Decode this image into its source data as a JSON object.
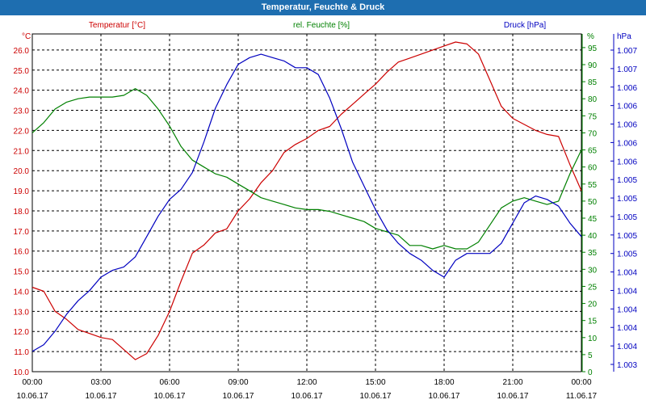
{
  "window": {
    "title": "Temperatur, Feuchte & Druck"
  },
  "colors": {
    "temperature": "#cc0000",
    "humidity": "#008000",
    "pressure": "#0000c0",
    "title_bar": "#1e6eb0",
    "grid": "#000000"
  },
  "chart_data": {
    "type": "line",
    "title": "Temperatur, Feuchte & Druck",
    "grid": true,
    "x_labels": [
      {
        "time": "00:00",
        "date": "10.06.17"
      },
      {
        "time": "03:00",
        "date": "10.06.17"
      },
      {
        "time": "06:00",
        "date": "10.06.17"
      },
      {
        "time": "09:00",
        "date": "10.06.17"
      },
      {
        "time": "12:00",
        "date": "10.06.17"
      },
      {
        "time": "15:00",
        "date": "10.06.17"
      },
      {
        "time": "18:00",
        "date": "10.06.17"
      },
      {
        "time": "21:00",
        "date": "10.06.17"
      },
      {
        "time": "00:00",
        "date": "11.06.17"
      }
    ],
    "xlim": [
      0,
      24
    ],
    "axes": {
      "temperature": {
        "label": "Temperatur [°C]",
        "unit": "°C",
        "ylim": [
          10.0,
          26.8
        ],
        "ticks": [
          "10.0",
          "11.0",
          "12.0",
          "13.0",
          "14.0",
          "15.0",
          "16.0",
          "17.0",
          "18.0",
          "19.0",
          "20.0",
          "21.0",
          "22.0",
          "23.0",
          "24.0",
          "25.0",
          "26.0"
        ]
      },
      "humidity": {
        "label": "rel. Feuchte [%]",
        "unit": "%",
        "ylim": [
          0,
          99
        ],
        "ticks": [
          "0",
          "5",
          "10",
          "15",
          "20",
          "25",
          "30",
          "35",
          "40",
          "45",
          "50",
          "55",
          "60",
          "65",
          "70",
          "75",
          "80",
          "85",
          "90",
          "95"
        ]
      },
      "pressure": {
        "label": "Druck [hPa]",
        "unit": "hPa",
        "ticks": [
          "1.003",
          "1.004",
          "1.004",
          "1.004",
          "1.004",
          "1.004",
          "1.005",
          "1.005",
          "1.005",
          "1.005",
          "1.005",
          "1.006",
          "1.006",
          "1.006",
          "1.006",
          "1.006",
          "1.007",
          "1.007"
        ]
      }
    },
    "series": [
      {
        "name": "Temperatur [°C]",
        "axis": "temperature",
        "x": [
          0,
          0.5,
          1,
          1.5,
          2,
          2.5,
          3,
          3.5,
          4,
          4.5,
          5,
          5.5,
          6,
          6.5,
          7,
          7.5,
          8,
          8.5,
          9,
          9.5,
          10,
          10.5,
          11,
          11.5,
          12,
          12.5,
          13,
          13.5,
          14,
          14.5,
          15,
          15.5,
          16,
          16.5,
          17,
          17.5,
          18,
          18.5,
          19,
          19.5,
          20,
          20.5,
          21,
          21.5,
          22,
          22.5,
          23,
          23.5,
          24
        ],
        "values": [
          14.2,
          14.0,
          13.0,
          12.6,
          12.1,
          11.9,
          11.7,
          11.6,
          11.1,
          10.6,
          10.9,
          11.8,
          13.0,
          14.5,
          15.9,
          16.3,
          16.9,
          17.1,
          18.0,
          18.6,
          19.4,
          20.0,
          20.9,
          21.3,
          21.6,
          22.0,
          22.2,
          22.8,
          23.3,
          23.8,
          24.3,
          24.9,
          25.4,
          25.6,
          25.8,
          26.0,
          26.2,
          26.4,
          26.3,
          25.8,
          24.5,
          23.2,
          22.6,
          22.3,
          22.0,
          21.8,
          21.7,
          20.3,
          19.0
        ]
      },
      {
        "name": "rel. Feuchte [%]",
        "axis": "humidity",
        "x": [
          0,
          0.5,
          1,
          1.5,
          2,
          2.5,
          3,
          3.5,
          4,
          4.5,
          5,
          5.5,
          6,
          6.5,
          7,
          7.5,
          8,
          8.5,
          9,
          9.5,
          10,
          10.5,
          11,
          11.5,
          12,
          12.5,
          13,
          13.5,
          14,
          14.5,
          15,
          15.5,
          16,
          16.5,
          17,
          17.5,
          18,
          18.5,
          19,
          19.5,
          20,
          20.5,
          21,
          21.5,
          22,
          22.5,
          23,
          23.5,
          24
        ],
        "values": [
          70,
          73,
          77,
          79,
          80,
          80.5,
          80.5,
          80.5,
          81,
          83,
          81,
          77,
          72,
          66,
          62,
          60,
          58,
          57,
          55,
          53,
          51,
          50,
          49,
          48,
          47.5,
          47.5,
          47,
          46,
          45,
          44,
          42,
          41,
          40,
          37,
          37,
          36,
          37,
          36,
          36,
          38,
          43,
          48,
          50,
          51,
          50,
          49,
          50,
          58,
          65
        ]
      },
      {
        "name": "Druck [hPa]",
        "axis": "pressure",
        "x": [
          0,
          0.5,
          1,
          1.5,
          2,
          2.5,
          3,
          3.5,
          4,
          4.5,
          5,
          5.5,
          6,
          6.5,
          7,
          7.5,
          8,
          8.5,
          9,
          9.5,
          10,
          10.5,
          11,
          11.5,
          12,
          12.5,
          13,
          13.5,
          14,
          14.5,
          15,
          15.5,
          16,
          16.5,
          17,
          17.5,
          18,
          18.5,
          19,
          19.5,
          20,
          20.5,
          21,
          21.5,
          22,
          22.5,
          23,
          23.5,
          24
        ],
        "values": [
          6,
          8,
          12,
          17,
          21,
          24,
          28,
          30,
          31,
          34,
          40,
          46,
          51,
          54,
          59,
          68,
          78,
          85,
          91,
          93,
          94,
          93,
          92,
          90,
          90,
          88,
          81,
          72,
          62,
          55,
          48,
          42,
          38,
          35,
          33,
          30,
          28,
          33,
          35,
          35,
          35,
          38,
          44,
          50,
          52,
          51,
          49,
          44,
          40
        ]
      }
    ]
  }
}
